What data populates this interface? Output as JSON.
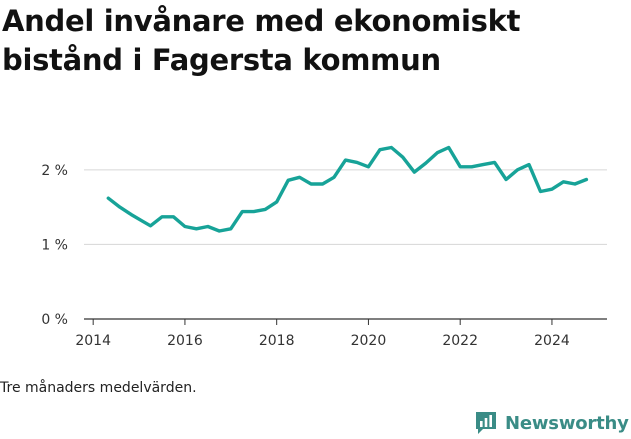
{
  "title": "Andel invånare med ekonomiskt bistånd i Fagersta kommun",
  "note": "Tre månaders medelvärden.",
  "brand": {
    "name": "Newsworthy",
    "color": "#3a8c86"
  },
  "chart_data": {
    "type": "line",
    "title": "Andel invånare med ekonomiskt bistånd i Fagersta kommun",
    "xlabel": "",
    "ylabel": "",
    "xlim": [
      2013.8,
      2025.2
    ],
    "ylim": [
      0,
      2.4
    ],
    "x_ticks": [
      2014,
      2016,
      2018,
      2020,
      2022,
      2024
    ],
    "x_tick_labels": [
      "2014",
      "2016",
      "2018",
      "2020",
      "2022",
      "2024"
    ],
    "y_ticks": [
      0,
      1,
      2
    ],
    "y_tick_labels": [
      "0 %",
      "1 %",
      "2 %"
    ],
    "grid": "horizontal",
    "line_color": "#17a398",
    "series": [
      {
        "values": [
          [
            2014.33,
            1.62
          ],
          [
            2014.58,
            1.5
          ],
          [
            2014.83,
            1.4
          ],
          [
            2015.08,
            1.31
          ],
          [
            2015.25,
            1.25
          ],
          [
            2015.5,
            1.37
          ],
          [
            2015.75,
            1.37
          ],
          [
            2016.0,
            1.24
          ],
          [
            2016.25,
            1.21
          ],
          [
            2016.5,
            1.24
          ],
          [
            2016.75,
            1.18
          ],
          [
            2017.0,
            1.21
          ],
          [
            2017.25,
            1.44
          ],
          [
            2017.5,
            1.44
          ],
          [
            2017.75,
            1.47
          ],
          [
            2018.0,
            1.57
          ],
          [
            2018.25,
            1.86
          ],
          [
            2018.5,
            1.9
          ],
          [
            2018.75,
            1.81
          ],
          [
            2019.0,
            1.81
          ],
          [
            2019.25,
            1.9
          ],
          [
            2019.5,
            2.13
          ],
          [
            2019.75,
            2.1
          ],
          [
            2020.0,
            2.04
          ],
          [
            2020.25,
            2.27
          ],
          [
            2020.5,
            2.3
          ],
          [
            2020.75,
            2.17
          ],
          [
            2021.0,
            1.97
          ],
          [
            2021.25,
            2.09
          ],
          [
            2021.5,
            2.23
          ],
          [
            2021.75,
            2.3
          ],
          [
            2022.0,
            2.04
          ],
          [
            2022.25,
            2.04
          ],
          [
            2022.5,
            2.07
          ],
          [
            2022.75,
            2.1
          ],
          [
            2023.0,
            1.87
          ],
          [
            2023.25,
            2.0
          ],
          [
            2023.5,
            2.07
          ],
          [
            2023.75,
            1.71
          ],
          [
            2024.0,
            1.74
          ],
          [
            2024.25,
            1.84
          ],
          [
            2024.5,
            1.81
          ],
          [
            2024.75,
            1.87
          ]
        ]
      }
    ]
  }
}
